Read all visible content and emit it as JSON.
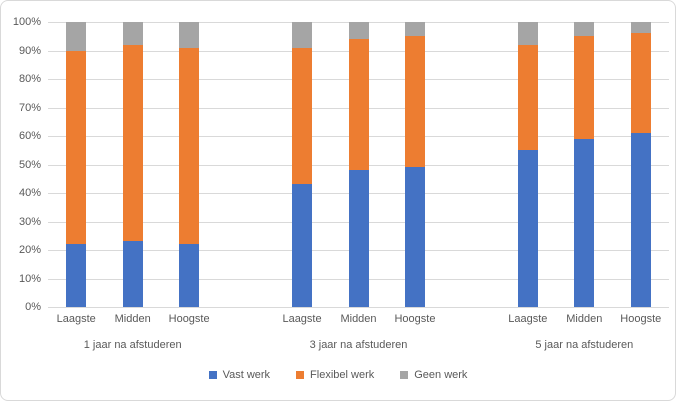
{
  "chart": {
    "background_color": "#FFFFFF",
    "border_color": "#D9D9D9",
    "gridline_color": "#D9D9D9",
    "text_color": "#595959"
  },
  "chart_data": {
    "type": "bar",
    "subtype": "stacked-100-percent",
    "title": "",
    "grid": true,
    "groups": [
      "1 jaar na afstuderen",
      "3 jaar na afstuderen",
      "5 jaar na afstuderen"
    ],
    "categories": [
      "Laagste",
      "Midden",
      "Hoogste"
    ],
    "series": [
      {
        "name": "Vast werk",
        "color": "#4472C4",
        "values": [
          [
            22,
            23,
            22
          ],
          [
            43,
            48,
            49
          ],
          [
            55,
            59,
            61
          ]
        ]
      },
      {
        "name": "Flexibel werk",
        "color": "#ED7D31",
        "values": [
          [
            68,
            69,
            69
          ],
          [
            48,
            46,
            46
          ],
          [
            37,
            36,
            35
          ]
        ]
      },
      {
        "name": "Geen werk",
        "color": "#A5A5A5",
        "values": [
          [
            10,
            8,
            9
          ],
          [
            9,
            6,
            5
          ],
          [
            8,
            5,
            4
          ]
        ]
      }
    ],
    "y_axis": {
      "min": 0,
      "max": 100,
      "step": 10,
      "tick_labels": [
        "0%",
        "10%",
        "20%",
        "30%",
        "40%",
        "50%",
        "60%",
        "70%",
        "80%",
        "90%",
        "100%"
      ]
    },
    "legend": {
      "position": "bottom",
      "entries": [
        "Vast werk",
        "Flexibel werk",
        "Geen werk"
      ]
    }
  }
}
